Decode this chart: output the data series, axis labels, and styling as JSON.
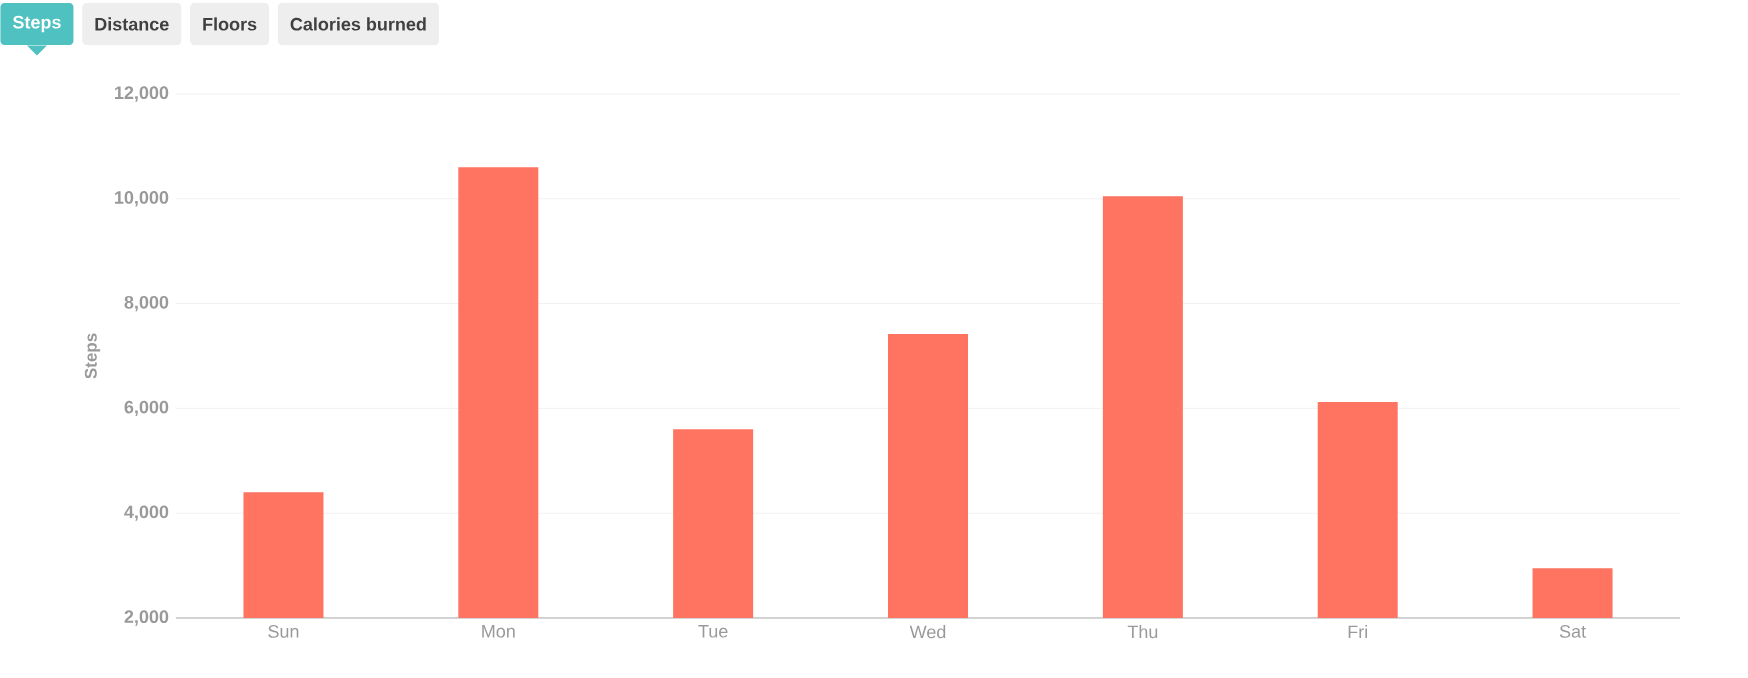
{
  "chart_data": {
    "type": "bar",
    "ylabel": "Steps",
    "annotations": [
      "Steps",
      "Distance",
      "Floors",
      "Calories burned"
    ],
    "categories": [
      "Sun",
      "Mon",
      "Tue",
      "Wed",
      "Thu",
      "Fri",
      "Sat"
    ],
    "values": [
      4400,
      10600,
      5600,
      7420,
      10050,
      6120,
      2950
    ],
    "color": "#ff7361",
    "ylim": [
      2000,
      12000
    ],
    "yticks": [
      {
        "value": 2000,
        "label": "2,000"
      },
      {
        "value": 4000,
        "label": "4,000"
      },
      {
        "value": 6000,
        "label": "6,000"
      },
      {
        "value": 8000,
        "label": "8,000"
      },
      {
        "value": 10000,
        "label": "10,000"
      },
      {
        "value": 12000,
        "label": "12,000"
      }
    ],
    "grid": "y"
  }
}
